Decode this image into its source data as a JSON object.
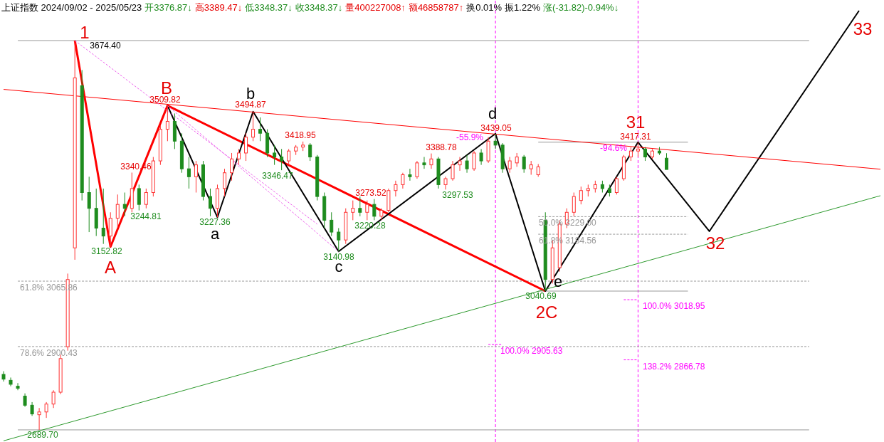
{
  "chart_data": {
    "type": "candlestick",
    "title": "上证指数 2024/09/02 - 2025/05/23",
    "categories": [
      null,
      null,
      null,
      null,
      null,
      null,
      null,
      null,
      null,
      null,
      null,
      null,
      null,
      null,
      null,
      null,
      null,
      null,
      null,
      null,
      null,
      null,
      null,
      null,
      null,
      null,
      null,
      null,
      null,
      null,
      null,
      null,
      null,
      null,
      null,
      null,
      null,
      null,
      null,
      null,
      null,
      null,
      null,
      null,
      null,
      null,
      null,
      null,
      null,
      null,
      null,
      null,
      null,
      null,
      null,
      null,
      null,
      null,
      null,
      null,
      null,
      null,
      null,
      null,
      null,
      null,
      null,
      null,
      null,
      null,
      null,
      null,
      null,
      null,
      null,
      null,
      null,
      null,
      null,
      null,
      null,
      null,
      null,
      null,
      null,
      null,
      null,
      null,
      null,
      null,
      null,
      null,
      null,
      null,
      null,
      null,
      null,
      null,
      null,
      null,
      null,
      null,
      null,
      null,
      null,
      null,
      null,
      null,
      null,
      null,
      null,
      null,
      null,
      null,
      null,
      null,
      null,
      null,
      null,
      null,
      null,
      null,
      null,
      null
    ],
    "ohlc": [
      [
        2830,
        2838,
        2812,
        2818
      ],
      [
        2815,
        2822,
        2800,
        2805
      ],
      [
        2800,
        2808,
        2790,
        2795
      ],
      [
        2775,
        2782,
        2748,
        2752
      ],
      [
        2752,
        2760,
        2725,
        2730
      ],
      [
        2728,
        2745,
        2689.7,
        2735
      ],
      [
        2735,
        2760,
        2720,
        2755
      ],
      [
        2755,
        2790,
        2745,
        2785
      ],
      [
        2785,
        2880,
        2780,
        2870
      ],
      [
        2900,
        3085,
        2890,
        3070
      ],
      [
        3150,
        3674.4,
        3120,
        3580
      ],
      [
        3560,
        3600,
        3270,
        3290
      ],
      [
        3290,
        3330,
        3190,
        3250
      ],
      [
        3250,
        3300,
        3180,
        3200
      ],
      [
        3200,
        3300,
        3160,
        3180
      ],
      [
        3180,
        3240,
        3152.82,
        3225
      ],
      [
        3225,
        3285,
        3200,
        3260
      ],
      [
        3260,
        3290,
        3230,
        3250
      ],
      [
        3250,
        3340.46,
        3240,
        3300
      ],
      [
        3300,
        3310,
        3244.81,
        3260
      ],
      [
        3260,
        3300,
        3250,
        3290
      ],
      [
        3290,
        3380,
        3280,
        3370
      ],
      [
        3370,
        3460,
        3360,
        3450
      ],
      [
        3450,
        3509.82,
        3420,
        3470
      ],
      [
        3470,
        3490,
        3400,
        3420
      ],
      [
        3420,
        3440,
        3340,
        3350
      ],
      [
        3350,
        3380,
        3300,
        3330
      ],
      [
        3330,
        3370,
        3290,
        3360
      ],
      [
        3360,
        3370,
        3270,
        3280
      ],
      [
        3280,
        3300,
        3230,
        3250
      ],
      [
        3250,
        3310,
        3227.36,
        3300
      ],
      [
        3300,
        3350,
        3280,
        3340
      ],
      [
        3340,
        3390,
        3320,
        3375
      ],
      [
        3375,
        3400,
        3360,
        3390
      ],
      [
        3390,
        3440,
        3370,
        3430
      ],
      [
        3430,
        3494.87,
        3420,
        3450
      ],
      [
        3450,
        3480,
        3420,
        3440
      ],
      [
        3440,
        3450,
        3380,
        3390
      ],
      [
        3390,
        3410,
        3360,
        3380
      ],
      [
        3380,
        3400,
        3346.47,
        3370
      ],
      [
        3370,
        3400,
        3360,
        3395
      ],
      [
        3395,
        3410,
        3385,
        3405
      ],
      [
        3405,
        3418.95,
        3395,
        3410
      ],
      [
        3410,
        3415,
        3370,
        3380
      ],
      [
        3380,
        3385,
        3270,
        3280
      ],
      [
        3280,
        3290,
        3200,
        3220
      ],
      [
        3220,
        3240,
        3180,
        3190
      ],
      [
        3190,
        3200,
        3140.98,
        3170
      ],
      [
        3170,
        3250,
        3160,
        3240
      ],
      [
        3240,
        3270,
        3220,
        3250
      ],
      [
        3250,
        3280,
        3230,
        3240
      ],
      [
        3240,
        3270,
        3220,
        3260
      ],
      [
        3260,
        3273.52,
        3220,
        3230
      ],
      [
        3230,
        3250,
        3220.28,
        3245
      ],
      [
        3245,
        3300,
        3240,
        3295
      ],
      [
        3295,
        3320,
        3280,
        3310
      ],
      [
        3310,
        3340,
        3300,
        3335
      ],
      [
        3335,
        3350,
        3320,
        3330
      ],
      [
        3330,
        3370,
        3325,
        3365
      ],
      [
        3365,
        3380,
        3350,
        3360
      ],
      [
        3360,
        3388.78,
        3350,
        3375
      ],
      [
        3375,
        3380,
        3300,
        3310
      ],
      [
        3310,
        3330,
        3297.53,
        3325
      ],
      [
        3325,
        3370,
        3320,
        3360
      ],
      [
        3360,
        3380,
        3345,
        3370
      ],
      [
        3370,
        3385,
        3340,
        3350
      ],
      [
        3350,
        3395,
        3345,
        3390
      ],
      [
        3390,
        3400,
        3360,
        3370
      ],
      [
        3370,
        3430,
        3365,
        3420
      ],
      [
        3420,
        3439.05,
        3400,
        3410
      ],
      [
        3410,
        3415,
        3340,
        3350
      ],
      [
        3350,
        3380,
        3340,
        3370
      ],
      [
        3365,
        3390,
        3355,
        3380
      ],
      [
        3380,
        3385,
        3340,
        3350
      ],
      [
        3350,
        3370,
        3335,
        3360
      ],
      [
        3335,
        3362,
        3330,
        3355
      ],
      [
        3220,
        3240,
        3040.69,
        3070
      ],
      [
        3070,
        3170,
        3060,
        3150
      ],
      [
        3100,
        3220,
        3090,
        3210
      ],
      [
        3210,
        3250,
        3200,
        3240
      ],
      [
        3240,
        3290,
        3230,
        3280
      ],
      [
        3270,
        3305,
        3260,
        3295
      ],
      [
        3295,
        3310,
        3280,
        3300
      ],
      [
        3300,
        3320,
        3290,
        3310
      ],
      [
        3310,
        3320,
        3290,
        3300
      ],
      [
        3300,
        3310,
        3280,
        3290
      ],
      [
        3290,
        3330,
        3285,
        3325
      ],
      [
        3325,
        3385,
        3320,
        3380
      ],
      [
        3380,
        3405,
        3370,
        3395
      ],
      [
        3395,
        3417.31,
        3380,
        3400
      ],
      [
        3400,
        3405,
        3370,
        3380
      ],
      [
        3380,
        3400,
        3375,
        3395
      ],
      [
        3395,
        3405,
        3385,
        3390
      ],
      [
        3376.87,
        3389.47,
        3348.37,
        3348.37
      ],
      null,
      null,
      null,
      null,
      null,
      null,
      null,
      null,
      null,
      null,
      null,
      null,
      null,
      null,
      null,
      null,
      null,
      null,
      null,
      null,
      null,
      null,
      null,
      null,
      null,
      null,
      null,
      null,
      null,
      null
    ],
    "colors": [
      "#1e8c1e",
      "#1e8c1e",
      "#1e8c1e",
      "#1e8c1e",
      "#1e8c1e",
      "#ff3232",
      "#ff3232",
      "#ff3232",
      "#ff3232",
      "#ff3232",
      "#ff3232",
      "#1e8c1e",
      "#1e8c1e",
      "#1e8c1e",
      "#1e8c1e",
      "#ff3232",
      "#ff3232",
      "#1e8c1e",
      "#ff3232",
      "#1e8c1e",
      "#ff3232",
      "#ff3232",
      "#ff3232",
      "#ff3232",
      "#1e8c1e",
      "#1e8c1e",
      "#1e8c1e",
      "#ff3232",
      "#1e8c1e",
      "#1e8c1e",
      "#ff3232",
      "#ff3232",
      "#ff3232",
      "#ff3232",
      "#ff3232",
      "#ff3232",
      "#1e8c1e",
      "#1e8c1e",
      "#1e8c1e",
      "#1e8c1e",
      "#ff3232",
      "#ff3232",
      "#ff3232",
      "#1e8c1e",
      "#1e8c1e",
      "#1e8c1e",
      "#1e8c1e",
      "#1e8c1e",
      "#ff3232",
      "#ff3232",
      "#1e8c1e",
      "#ff3232",
      "#1e8c1e",
      "#ff3232",
      "#ff3232",
      "#ff3232",
      "#ff3232",
      "#1e8c1e",
      "#ff3232",
      "#1e8c1e",
      "#ff3232",
      "#1e8c1e",
      "#ff3232",
      "#ff3232",
      "#ff3232",
      "#1e8c1e",
      "#ff3232",
      "#1e8c1e",
      "#ff3232",
      "#1e8c1e",
      "#1e8c1e",
      "#ff3232",
      "#ff3232",
      "#1e8c1e",
      "#ff3232",
      "#ff3232",
      "#1e8c1e",
      "#ff3232",
      "#ff3232",
      "#ff3232",
      "#ff3232",
      "#ff3232",
      "#ff3232",
      "#ff3232",
      "#1e8c1e",
      "#1e8c1e",
      "#ff3232",
      "#ff3232",
      "#ff3232",
      "#ff3232",
      "#1e8c1e",
      "#ff3232",
      "#1e8c1e",
      "#1e8c1e",
      null,
      null,
      null,
      null,
      null,
      null,
      null,
      null,
      null,
      null,
      null,
      null,
      null,
      null,
      null,
      null,
      null,
      null,
      null,
      null,
      null,
      null,
      null,
      null,
      null,
      null,
      null,
      null,
      null,
      null
    ],
    "ylim": [
      2659,
      3777
    ],
    "tick_labels": false,
    "series": [
      {
        "type": "line",
        "color": "#ff0000",
        "line_style": "solid",
        "values": [
          null,
          null,
          null,
          null,
          null,
          null,
          null,
          null,
          null,
          null,
          3674.4,
          null,
          null,
          null,
          null,
          3152.82,
          null,
          null,
          null,
          null,
          null,
          null,
          null,
          3509.82,
          null,
          null,
          null,
          null,
          null,
          null,
          null,
          null,
          null,
          null,
          null,
          null,
          null,
          null,
          null,
          null,
          null,
          null,
          null,
          null,
          null,
          null,
          null,
          null,
          null,
          null,
          null,
          null,
          null,
          null,
          null,
          null,
          null,
          null,
          null,
          null,
          null,
          null,
          null,
          null,
          null,
          null,
          null,
          null,
          null,
          null,
          null,
          null,
          null,
          null,
          null,
          null,
          3040.69,
          null,
          null,
          null,
          null,
          null,
          null,
          null,
          null,
          null,
          null,
          null,
          null,
          null,
          null,
          null,
          null,
          null,
          null,
          null,
          null,
          null,
          null,
          null,
          null,
          null,
          null,
          null,
          null,
          null,
          null,
          null,
          null,
          null,
          null,
          null,
          null,
          null,
          null,
          null,
          null,
          null,
          null,
          null,
          null,
          null,
          null,
          null
        ]
      },
      {
        "type": "line",
        "color": "#000000",
        "line_style": "solid",
        "values": [
          null,
          null,
          null,
          null,
          null,
          null,
          null,
          null,
          null,
          null,
          null,
          null,
          null,
          null,
          null,
          null,
          null,
          null,
          null,
          null,
          null,
          null,
          null,
          3509.82,
          null,
          null,
          null,
          null,
          null,
          null,
          3227.36,
          null,
          null,
          null,
          null,
          3494.87,
          null,
          null,
          null,
          null,
          null,
          null,
          null,
          null,
          null,
          null,
          null,
          3140.98,
          null,
          null,
          null,
          null,
          null,
          null,
          null,
          null,
          null,
          null,
          null,
          null,
          null,
          null,
          null,
          null,
          null,
          null,
          null,
          null,
          null,
          3439.05,
          null,
          null,
          null,
          null,
          null,
          null,
          3040.69,
          null,
          null,
          null,
          null,
          null,
          null,
          null,
          null,
          null,
          null,
          null,
          null,
          3417.31,
          null,
          null,
          null,
          null,
          null,
          null,
          null,
          null,
          null,
          3192,
          null,
          null,
          null,
          null,
          null,
          null,
          null,
          null,
          null,
          null,
          null,
          null,
          null,
          null,
          null,
          null,
          null,
          null,
          null,
          null,
          3750,
          null,
          null,
          null
        ]
      },
      {
        "type": "line",
        "color": "#ff0000",
        "line_style": "solid",
        "values": [
          3551,
          null,
          null,
          null,
          null,
          null,
          null,
          null,
          null,
          null,
          null,
          null,
          null,
          null,
          null,
          null,
          null,
          null,
          null,
          null,
          null,
          null,
          null,
          null,
          null,
          null,
          null,
          null,
          null,
          null,
          null,
          null,
          null,
          null,
          null,
          null,
          null,
          null,
          null,
          null,
          null,
          null,
          null,
          null,
          null,
          null,
          null,
          null,
          null,
          null,
          null,
          null,
          null,
          null,
          null,
          null,
          null,
          null,
          null,
          null,
          null,
          null,
          null,
          null,
          null,
          null,
          null,
          null,
          null,
          null,
          null,
          null,
          null,
          null,
          null,
          null,
          null,
          null,
          null,
          null,
          null,
          null,
          null,
          null,
          null,
          null,
          null,
          null,
          null,
          null,
          null,
          null,
          null,
          null,
          null,
          null,
          null,
          null,
          null,
          null,
          null,
          null,
          null,
          null,
          null,
          null,
          null,
          null,
          null,
          null,
          null,
          null,
          null,
          null,
          null,
          null,
          null,
          null,
          null,
          null,
          null,
          null,
          null,
          3349
        ]
      },
      {
        "type": "line",
        "color": "#2e9a2e",
        "line_style": "solid",
        "values": [
          2662,
          null,
          null,
          null,
          null,
          null,
          null,
          null,
          null,
          null,
          null,
          null,
          null,
          null,
          null,
          null,
          null,
          null,
          null,
          null,
          null,
          null,
          null,
          null,
          null,
          null,
          null,
          null,
          null,
          null,
          null,
          null,
          null,
          null,
          null,
          null,
          null,
          null,
          null,
          null,
          null,
          null,
          null,
          null,
          null,
          null,
          null,
          null,
          null,
          null,
          null,
          null,
          null,
          null,
          null,
          null,
          null,
          null,
          null,
          null,
          null,
          null,
          null,
          null,
          null,
          null,
          null,
          null,
          null,
          null,
          null,
          null,
          null,
          null,
          null,
          null,
          null,
          null,
          null,
          null,
          null,
          null,
          null,
          null,
          null,
          null,
          null,
          null,
          null,
          null,
          null,
          null,
          null,
          null,
          null,
          null,
          null,
          null,
          null,
          null,
          null,
          null,
          null,
          null,
          null,
          null,
          null,
          null,
          null,
          null,
          null,
          null,
          null,
          null,
          null,
          null,
          null,
          null,
          null,
          null,
          null,
          null,
          null,
          3282
        ]
      },
      {
        "type": "line",
        "color": "#ee66ee",
        "line_style": "dashed",
        "values": [
          null,
          null,
          null,
          null,
          null,
          null,
          null,
          null,
          null,
          null,
          3674.4,
          null,
          null,
          null,
          null,
          null,
          null,
          null,
          null,
          null,
          null,
          null,
          null,
          null,
          null,
          null,
          null,
          null,
          null,
          null,
          null,
          null,
          null,
          null,
          null,
          null,
          null,
          null,
          null,
          null,
          null,
          null,
          null,
          null,
          3210,
          null,
          null,
          null,
          null,
          null,
          null,
          null,
          null,
          null,
          null,
          null,
          null,
          null,
          null,
          null,
          null,
          null,
          null,
          null,
          null,
          null,
          null,
          null,
          null,
          null,
          null,
          null,
          null,
          null,
          null,
          null,
          null,
          null,
          null,
          null,
          null,
          null,
          null,
          null,
          null,
          null,
          null,
          null,
          null,
          null,
          null,
          null,
          null,
          null,
          null,
          null,
          null,
          null,
          null,
          null,
          null,
          null,
          null,
          null,
          null,
          null,
          null,
          null,
          null,
          null,
          null,
          null,
          null,
          null,
          null,
          null,
          null,
          null,
          null,
          null,
          null,
          null,
          null,
          null
        ]
      },
      {
        "type": "line",
        "color": "#ee66ee",
        "line_style": "dashed",
        "values": [
          null,
          null,
          null,
          null,
          null,
          null,
          null,
          null,
          null,
          null,
          null,
          null,
          null,
          null,
          null,
          null,
          null,
          null,
          null,
          null,
          null,
          null,
          null,
          3509.82,
          null,
          null,
          null,
          null,
          null,
          null,
          null,
          null,
          null,
          null,
          null,
          null,
          null,
          null,
          null,
          null,
          null,
          null,
          null,
          null,
          null,
          null,
          null,
          3140.98,
          null,
          null,
          null,
          null,
          null,
          null,
          null,
          null,
          null,
          null,
          null,
          null,
          null,
          null,
          null,
          null,
          null,
          null,
          null,
          null,
          null,
          null,
          null,
          null,
          null,
          null,
          null,
          null,
          null,
          null,
          null,
          null,
          null,
          null,
          null,
          null,
          null,
          null,
          null,
          null,
          null,
          null,
          null,
          null,
          null,
          null,
          null,
          null,
          null,
          null,
          null,
          null,
          null,
          null,
          null,
          null,
          null,
          null,
          null,
          null,
          null,
          null,
          null,
          null,
          null,
          null,
          null,
          null,
          null,
          null,
          null,
          null,
          null,
          null,
          null,
          null
        ]
      }
    ],
    "ref_lines": [
      {
        "axis": "y",
        "value": 3674.4,
        "color": "#999999",
        "line_style": "solid"
      },
      {
        "axis": "y",
        "value": 2689.7,
        "color": "#999999",
        "line_style": "solid"
      },
      {
        "axis": "y",
        "value": 3065.86,
        "label": "61.8% 3065.86",
        "color": "#999999",
        "line_style": "dashed"
      },
      {
        "axis": "y",
        "value": 2900.43,
        "label": "78.6% 2900.43",
        "color": "#999999",
        "line_style": "dashed"
      },
      {
        "axis": "y",
        "value": 3417.31,
        "color": "#999999",
        "line_style": "solid"
      },
      {
        "axis": "y",
        "value": 3040.69,
        "color": "#999999",
        "line_style": "solid"
      },
      {
        "axis": "y",
        "value": 3229.0,
        "label": "50.0% 3229.00",
        "color": "#999999",
        "line_style": "dashed"
      },
      {
        "axis": "y",
        "value": 3184.56,
        "label": "61.8% 3184.56",
        "color": "#999999",
        "line_style": "dashed"
      },
      {
        "axis": "y",
        "value": 2905.63,
        "label": "100.0% 2905.63",
        "color": "#ff00ff",
        "line_style": "dashed"
      },
      {
        "axis": "y",
        "value": 3018.95,
        "label": "100.0% 3018.95",
        "color": "#ff00ff",
        "line_style": "dashed"
      },
      {
        "axis": "y",
        "value": 2866.78,
        "label": "138.2% 2866.78",
        "color": "#ff00ff",
        "line_style": "dashed"
      }
    ],
    "annotations": [
      "开3376.87↓",
      "高3389.47↓",
      "低3348.37↓",
      "收3348.37↓",
      "量400227008↑",
      "额46858787↑",
      "换0.01%",
      "振1.22%",
      "涨(-31.82)-0.94%↓",
      "1",
      "3674.40",
      "A",
      "3152.82",
      "B",
      "3509.82",
      "3340.46",
      "3244.81",
      "b",
      "3494.87",
      "a",
      "3227.36",
      "3418.95",
      "3346.47",
      "3140.98",
      "c",
      "3273.52",
      "3220.28",
      "3388.78",
      "3297.53",
      "-55.9%",
      "d",
      "3439.05",
      "3040.69",
      "2C",
      "e",
      "31",
      "3417.31",
      "-94.6%",
      "2689.70",
      "32",
      "33"
    ]
  }
}
